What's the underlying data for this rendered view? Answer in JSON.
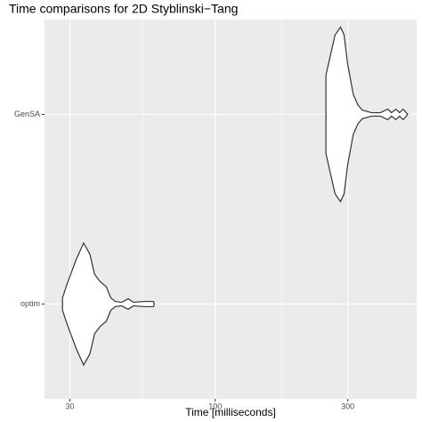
{
  "chart_data": {
    "type": "violin",
    "title": "Time comparisons for 2D Styblinski−Tang",
    "x_label": "Time [milliseconds]",
    "log_x": true,
    "grid": true,
    "xlim": [
      24.3,
      531
    ],
    "xticks": [
      30,
      100,
      300
    ],
    "categories": [
      "GenSA",
      "optim"
    ],
    "series": [
      {
        "name": "GenSA",
        "color": "#ffffff",
        "x": [
          250.4,
          260,
          270,
          282.5,
          291,
          300,
          314,
          326,
          338,
          365,
          393,
          418,
          431,
          447,
          461,
          475,
          493
        ],
        "values": [
          0.45,
          0.68,
          0.91,
          1,
          0.91,
          0.57,
          0.23,
          0.11,
          0.05,
          0.02,
          0.02,
          0.06,
          0.02,
          0.06,
          0.02,
          0.06,
          0
        ]
      },
      {
        "name": "optim",
        "color": "#ffffff",
        "x": [
          28.2,
          29.3,
          31.6,
          33.6,
          35.4,
          36.8,
          38.7,
          40.5,
          42.1,
          43.7,
          46.1,
          48.6,
          50.8,
          55.6,
          59.9,
          60.4
        ],
        "values": [
          0.07,
          0.23,
          0.51,
          0.7,
          0.57,
          0.34,
          0.25,
          0.2,
          0.07,
          0.03,
          0.02,
          0.06,
          0.02,
          0.03,
          0.03,
          0
        ]
      }
    ]
  }
}
